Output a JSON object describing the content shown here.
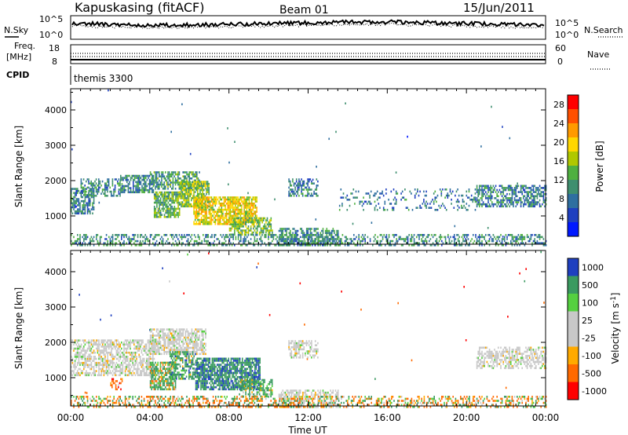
{
  "header": {
    "title": "Kapuskasing (fitACF)",
    "beam": "Beam 01",
    "date": "15/Jun/2011"
  },
  "noise_panel": {
    "left_label": "N.Sky",
    "right_label": "N.Search",
    "left_ticks": [
      "10^5",
      "10^0"
    ],
    "right_ticks": [
      "10^5",
      "10^0"
    ]
  },
  "freq_panel": {
    "left_label_1": "Freq.",
    "left_label_2": "[MHz]",
    "right_label": "Nave",
    "left_ticks": [
      "18",
      "8"
    ],
    "right_ticks": [
      "60",
      "0"
    ],
    "cpid_label": "CPID",
    "cpid_value": "themis 3300"
  },
  "colors": {
    "power_scale": [
      "#0018ff",
      "#1f40c0",
      "#2f6fa0",
      "#3f8f6f",
      "#4fb040",
      "#b0c800",
      "#ffd700",
      "#ff9a00",
      "#ff5000",
      "#ff0000"
    ],
    "velocity_scale": [
      "#ff0000",
      "#ff6a00",
      "#ffaa00",
      "#c8c8c8",
      "#c8c8c8",
      "#55d040",
      "#3a9a60",
      "#1f40c0"
    ],
    "ground_scatter": "#c8c8c8"
  },
  "chart_data": [
    {
      "type": "heatmap",
      "name_text": "power",
      "ylabel": "Slant Range [km]",
      "yticks": [
        "1000",
        "2000",
        "3000",
        "4000"
      ],
      "ylim": [
        200,
        4600
      ],
      "xlim": [
        0,
        24
      ],
      "colorbar_label": "Power [dB]",
      "colorbar_ticks": [
        "4",
        "8",
        "12",
        "16",
        "20",
        "24",
        "28"
      ],
      "colorbar_range": [
        0,
        30
      ],
      "regions": [
        {
          "t0": 0.0,
          "t1": 1.2,
          "r0": 1100,
          "r1": 1800,
          "value": 9,
          "density": 0.7
        },
        {
          "t0": 0.5,
          "t1": 2.5,
          "r0": 1600,
          "r1": 2100,
          "value": 10,
          "density": 0.5
        },
        {
          "t0": 2.5,
          "t1": 4.2,
          "r0": 1700,
          "r1": 2200,
          "value": 9,
          "density": 0.7
        },
        {
          "t0": 4.0,
          "t1": 6.5,
          "r0": 1800,
          "r1": 2300,
          "value": 11,
          "density": 0.7
        },
        {
          "t0": 4.2,
          "t1": 5.5,
          "r0": 1000,
          "r1": 1700,
          "value": 13,
          "density": 0.75
        },
        {
          "t0": 5.5,
          "t1": 7.0,
          "r0": 1300,
          "r1": 2000,
          "value": 15,
          "density": 0.75
        },
        {
          "t0": 6.2,
          "t1": 9.4,
          "r0": 800,
          "r1": 1600,
          "value": 19,
          "density": 0.8
        },
        {
          "t0": 8.0,
          "t1": 10.2,
          "r0": 500,
          "r1": 1000,
          "value": 14,
          "density": 0.6
        },
        {
          "t0": 10.5,
          "t1": 13.5,
          "r0": 200,
          "r1": 700,
          "value": 10,
          "density": 0.6
        },
        {
          "t0": 11.0,
          "t1": 12.5,
          "r0": 1600,
          "r1": 2100,
          "value": 9,
          "density": 0.55
        },
        {
          "t0": 13.5,
          "t1": 20.5,
          "r0": 1200,
          "r1": 1800,
          "value": 8,
          "density": 0.18
        },
        {
          "t0": 20.5,
          "t1": 24.0,
          "r0": 1300,
          "r1": 1900,
          "value": 9,
          "density": 0.6
        },
        {
          "t0": 0.0,
          "t1": 24.0,
          "r0": 200,
          "r1": 500,
          "value": 10,
          "density": 0.4
        }
      ],
      "background_density": 0.012
    },
    {
      "type": "heatmap",
      "name_text": "velocity",
      "xlabel": "Time UT",
      "ylabel": "Slant Range [km]",
      "yticks": [
        "1000",
        "2000",
        "3000",
        "4000"
      ],
      "xticks": [
        "00:00",
        "04:00",
        "08:00",
        "12:00",
        "16:00",
        "20:00",
        "00:00"
      ],
      "ylim": [
        200,
        4600
      ],
      "xlim": [
        0,
        24
      ],
      "colorbar_label": "Velocity [m s^-1]",
      "colorbar_ticks": [
        "1000",
        "500",
        "100",
        "25",
        "-25",
        "-100",
        "-500",
        "-1000"
      ],
      "colorbar_range": [
        -1000,
        1000
      ],
      "regions": [
        {
          "t0": 0.0,
          "t1": 4.2,
          "r0": 1100,
          "r1": 2100,
          "value": 0,
          "density": 0.6
        },
        {
          "t0": 2.0,
          "t1": 2.6,
          "r0": 700,
          "r1": 1000,
          "value": -300,
          "density": 0.5
        },
        {
          "t0": 4.0,
          "t1": 5.3,
          "r0": 700,
          "r1": 1500,
          "value": 150,
          "density": 0.75
        },
        {
          "t0": 4.0,
          "t1": 6.8,
          "r0": 1700,
          "r1": 2400,
          "value": 0,
          "density": 0.7
        },
        {
          "t0": 5.0,
          "t1": 6.3,
          "r0": 1000,
          "r1": 1800,
          "value": 250,
          "density": 0.6
        },
        {
          "t0": 6.3,
          "t1": 9.6,
          "r0": 700,
          "r1": 1600,
          "value": 400,
          "density": 0.8
        },
        {
          "t0": 8.5,
          "t1": 10.2,
          "r0": 500,
          "r1": 1000,
          "value": 200,
          "density": 0.55
        },
        {
          "t0": 10.5,
          "t1": 13.5,
          "r0": 200,
          "r1": 700,
          "value": 0,
          "density": 0.55
        },
        {
          "t0": 11.0,
          "t1": 12.5,
          "r0": 1600,
          "r1": 2100,
          "value": 0,
          "density": 0.55
        },
        {
          "t0": 20.5,
          "t1": 24.0,
          "r0": 1300,
          "r1": 1900,
          "value": 0,
          "density": 0.55
        },
        {
          "t0": 0.0,
          "t1": 24.0,
          "r0": 200,
          "r1": 500,
          "value": -50,
          "density": 0.4
        }
      ],
      "background_density": 0.012
    }
  ]
}
